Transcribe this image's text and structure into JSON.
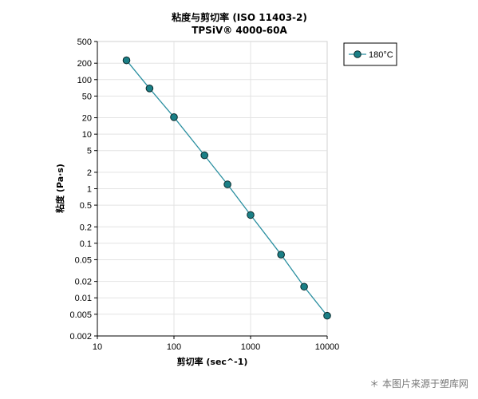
{
  "chart_data": {
    "type": "scatter",
    "title": "粘度与剪切率 (ISO 11403-2)",
    "subtitle": "TPSiV® 4000-60A",
    "xlabel": "剪切率 (sec^-1)",
    "ylabel": "粘度 (Pa·s)",
    "x_scale": "log",
    "y_scale": "log",
    "xlim": [
      10,
      10000
    ],
    "ylim": [
      0.002,
      500
    ],
    "x_ticks": [
      10,
      100,
      1000,
      10000
    ],
    "x_tick_labels": [
      "10",
      "100",
      "1000",
      "10000"
    ],
    "y_ticks": [
      0.002,
      0.005,
      0.01,
      0.02,
      0.05,
      0.1,
      0.2,
      0.5,
      1,
      2,
      5,
      10,
      20,
      50,
      100,
      200,
      500
    ],
    "y_tick_labels": [
      "0.002",
      "0.005",
      "0.01",
      "0.02",
      "0.05",
      "0.1",
      "0.2",
      "0.5",
      "1",
      "2",
      "5",
      "10",
      "20",
      "50",
      "100",
      "200",
      "500"
    ],
    "grid": true,
    "legend_position": "top-right",
    "series": [
      {
        "name": "180°C",
        "color": "#1a7f86",
        "line_color": "#2a8fa0",
        "marker": "circle",
        "x": [
          24,
          48,
          100,
          250,
          500,
          1000,
          2500,
          5000,
          10000
        ],
        "y": [
          226,
          69,
          20.5,
          4.1,
          1.2,
          0.33,
          0.062,
          0.016,
          0.0047
        ]
      }
    ]
  },
  "watermark": "＊ 本图片来源于塑库网"
}
